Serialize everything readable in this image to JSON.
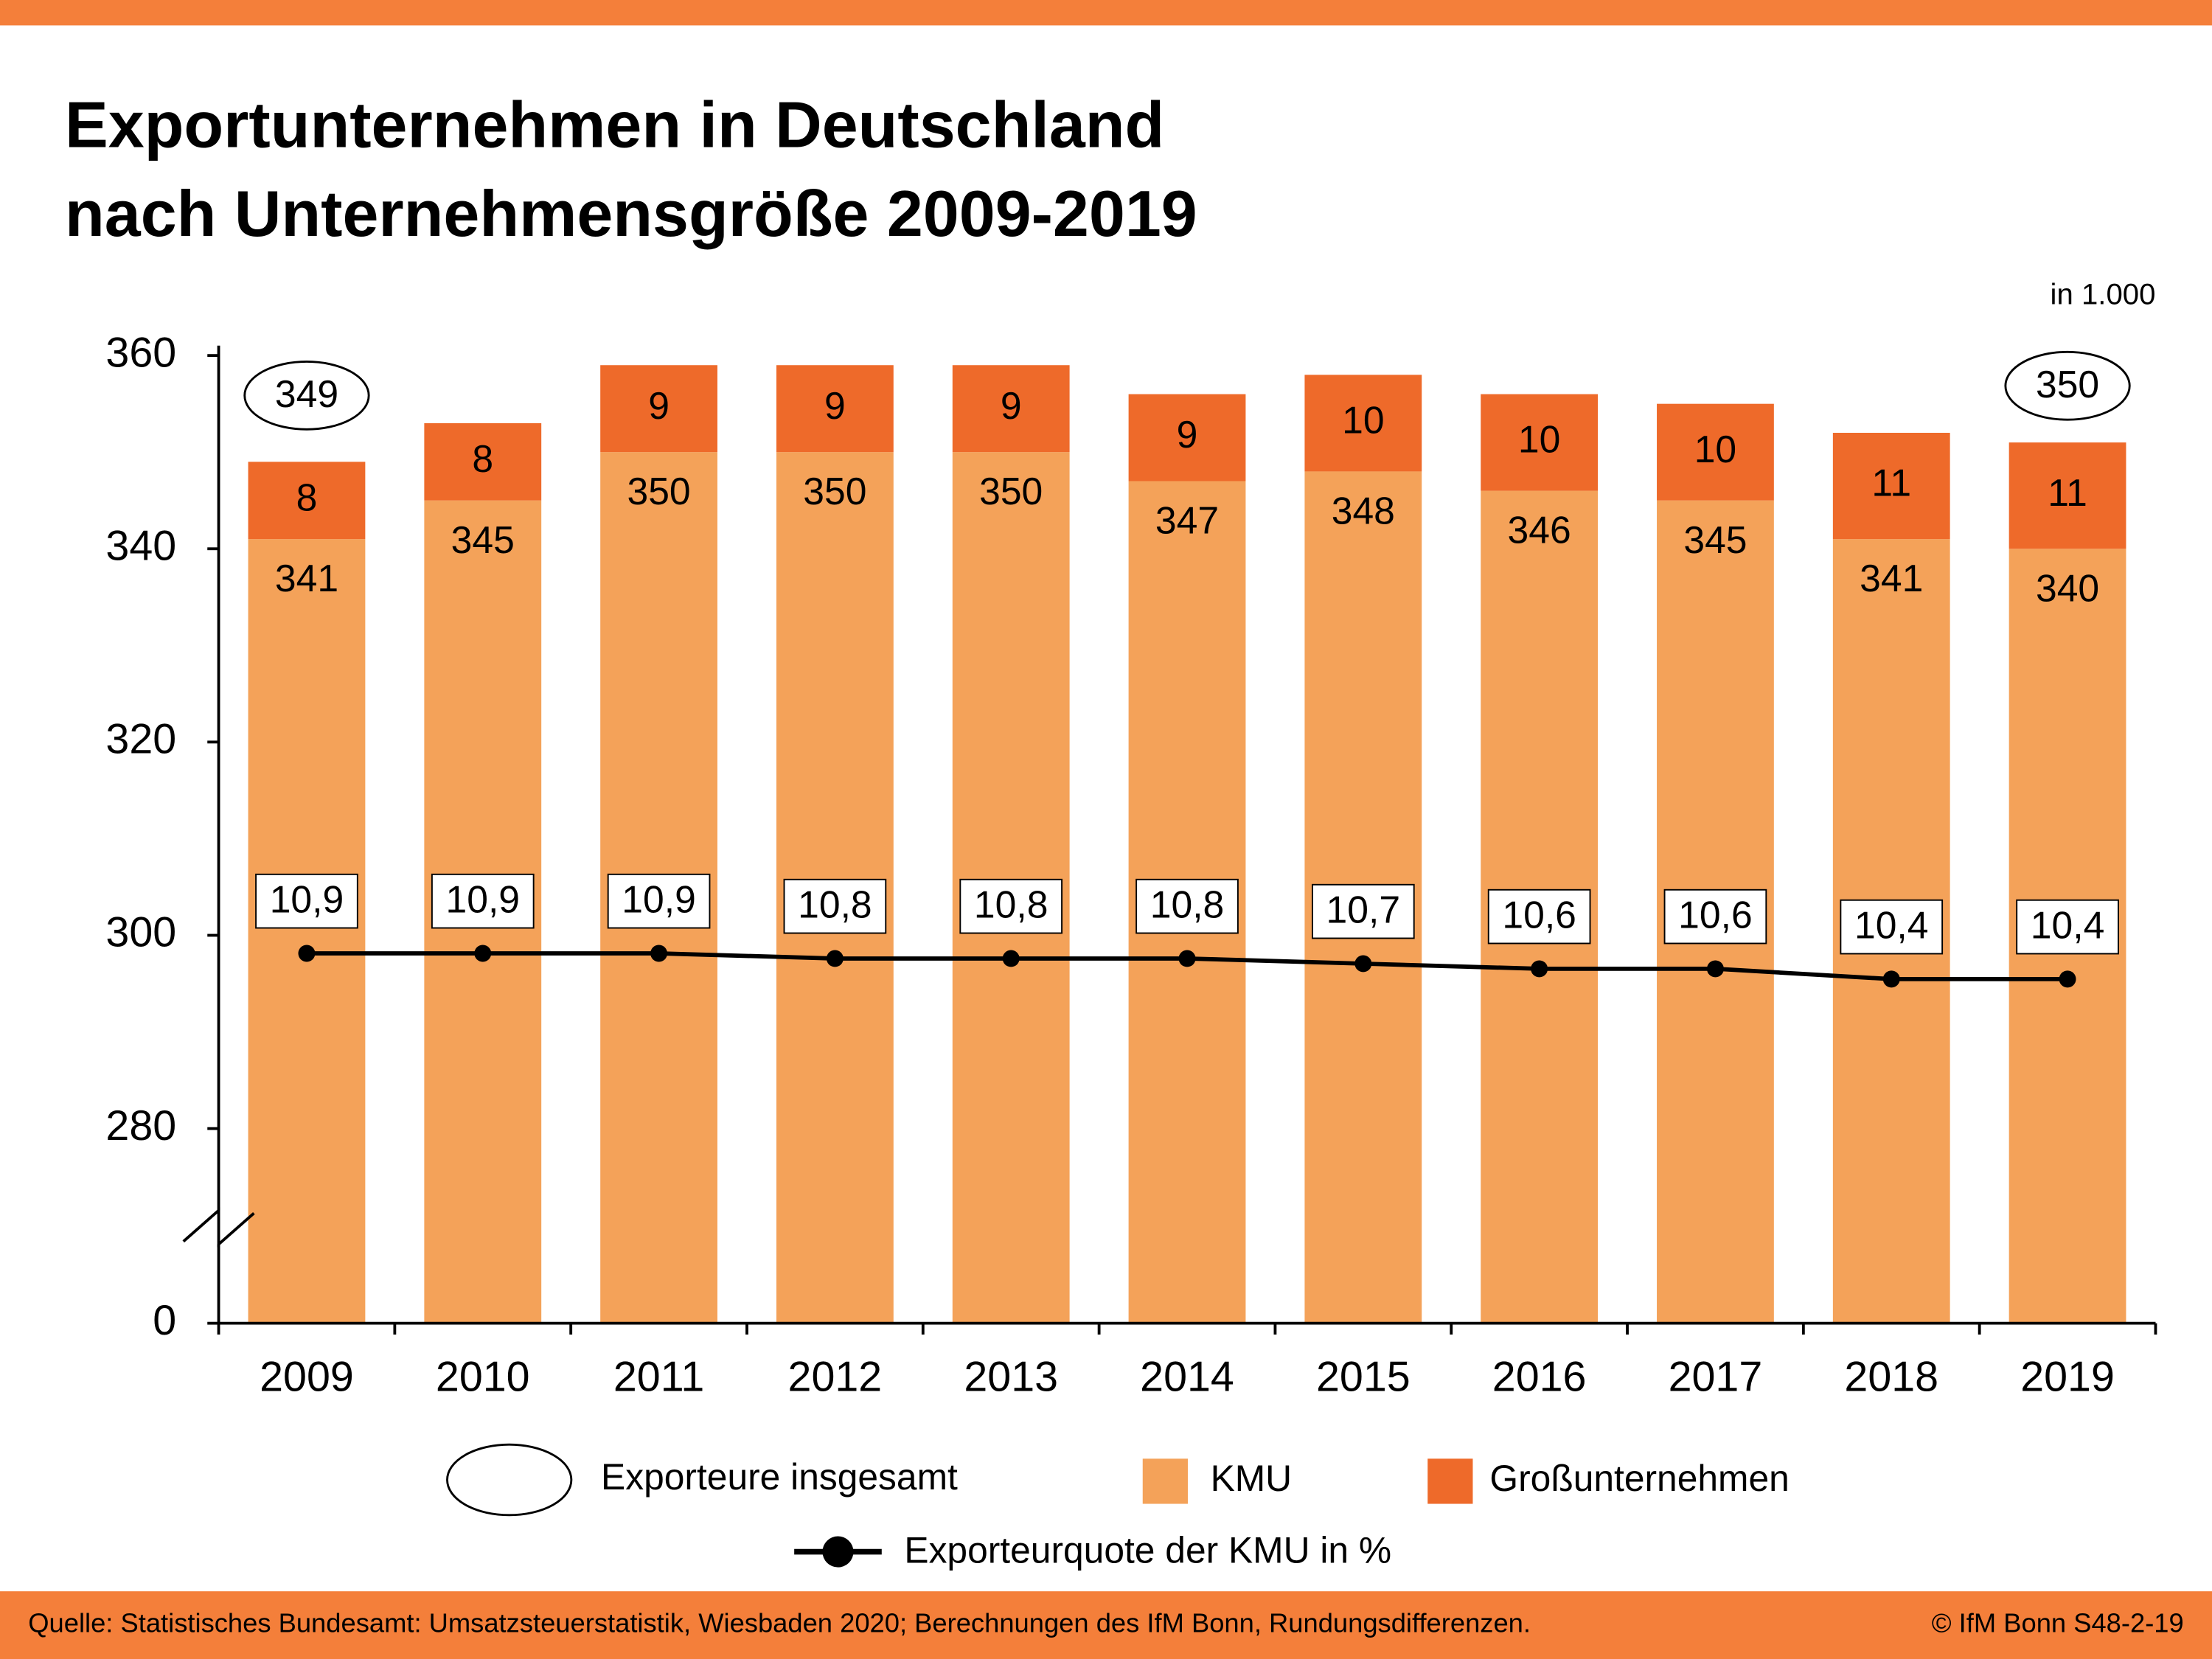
{
  "chart_data": {
    "type": "stacked_bar_line",
    "title": [
      "Exportunternehmen in Deutschland",
      "nach Unternehmensgröße 2009-2019"
    ],
    "unit_label": "in 1.000",
    "categories": [
      "2009",
      "2010",
      "2011",
      "2012",
      "2013",
      "2014",
      "2015",
      "2016",
      "2017",
      "2018",
      "2019"
    ],
    "series": [
      {
        "name": "KMU",
        "color": "#f4a259",
        "values": [
          341,
          345,
          350,
          350,
          350,
          347,
          348,
          346,
          345,
          341,
          340
        ]
      },
      {
        "name": "Großunternehmen",
        "color": "#ee6a2a",
        "values": [
          8,
          8,
          9,
          9,
          9,
          9,
          10,
          10,
          10,
          11,
          11
        ]
      },
      {
        "name": "Exporteurquote der KMU in %",
        "color": "#000000",
        "axis": "y2",
        "values": [
          10.9,
          10.9,
          10.9,
          10.8,
          10.8,
          10.8,
          10.7,
          10.6,
          10.6,
          10.4,
          10.4
        ],
        "value_labels": [
          "10,9",
          "10,9",
          "10,9",
          "10,8",
          "10,8",
          "10,8",
          "10,7",
          "10,6",
          "10,6",
          "10,4",
          "10,4"
        ]
      }
    ],
    "totals": {
      "name": "Exporteure insgesamt",
      "values": [
        349,
        null,
        null,
        null,
        null,
        null,
        null,
        null,
        null,
        null,
        350
      ]
    },
    "ylim": [
      0,
      360
    ],
    "axis_break": [
      0,
      280
    ],
    "yticks": [
      0,
      280,
      300,
      320,
      340,
      360
    ],
    "y2lim": [
      7.5,
      22.5
    ],
    "footer_source": "Quelle: Statistisches Bundesamt: Umsatzsteuerstatistik, Wiesbaden 2020; Berechnungen des IfM Bonn, Rundungsdifferenzen.",
    "footer_copyright": "© IfM Bonn  S48-2-19"
  }
}
